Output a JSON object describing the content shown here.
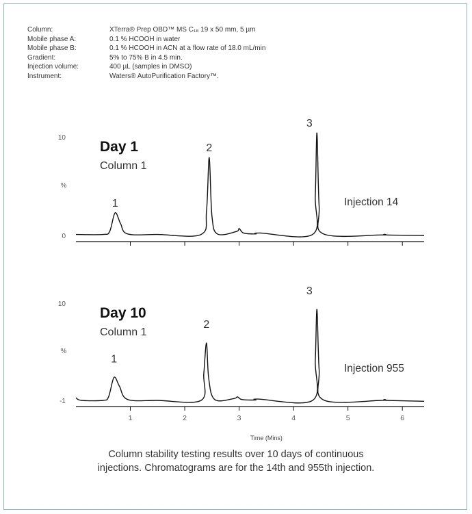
{
  "conditions": [
    {
      "label": "Column:",
      "value": "XTerra® Prep OBD™ MS C₁₈ 19 x 50 mm, 5 µm"
    },
    {
      "label": "Mobile phase A:",
      "value": "0.1 % HCOOH in water"
    },
    {
      "label": "Mobile phase B:",
      "value": "0.1 % HCOOH in ACN at a flow rate of 18.0 mL/min"
    },
    {
      "label": "Gradient:",
      "value": "5% to 75% B in 4.5 min."
    },
    {
      "label": "Injection volume:",
      "value": "400 µL (samples in DMSO)"
    },
    {
      "label": "Instrument:",
      "value": "Waters® AutoPurification Factory™."
    }
  ],
  "caption_lines": [
    "Column stability testing results over 10 days of continuous",
    "injections. Chromatograms are for the 14th and 955th injection."
  ],
  "colors": {
    "frame": "#8fb3c4",
    "trace": "#111111",
    "text": "#333333"
  },
  "chart_data": [
    {
      "type": "line",
      "title": "Day 1",
      "subtitle": "Column 1",
      "annotation": "Injection 14",
      "ylabel": "%",
      "xlabel": "",
      "ylim": [
        0,
        10
      ],
      "yticks": [
        "0",
        "10"
      ],
      "xlim": [
        0,
        6.4
      ],
      "xticks": [
        1,
        2,
        3,
        4,
        5,
        6
      ],
      "xtick_labels": false,
      "peaks": [
        {
          "label": "1",
          "time": 0.72,
          "height": 2.3
        },
        {
          "label": "2",
          "time": 2.45,
          "height": 7.9
        },
        {
          "label": "3",
          "time": 4.43,
          "height": 10.4
        }
      ],
      "series": [
        {
          "x": [
            0,
            0.5,
            0.62,
            0.72,
            0.82,
            0.95,
            1.5,
            2.3,
            2.4,
            2.45,
            2.5,
            2.6,
            2.95,
            3.0,
            3.08,
            3.3,
            3.38,
            4.35,
            4.4,
            4.43,
            4.47,
            4.55,
            5.6,
            5.67,
            5.72,
            6.4
          ],
          "y": [
            0.1,
            0.1,
            0.4,
            2.3,
            1.2,
            0.15,
            0.1,
            0.1,
            2.5,
            7.9,
            2.0,
            0.15,
            0.4,
            0.7,
            0.25,
            0.15,
            0.25,
            0.1,
            4.0,
            10.4,
            3.0,
            0.15,
            0.05,
            0.12,
            0.05,
            0.0
          ]
        }
      ]
    },
    {
      "type": "line",
      "title": "Day 10",
      "subtitle": "Column 1",
      "annotation": "Injection 955",
      "ylabel": "%",
      "xlabel": "Time (Mins)",
      "ylim": [
        -1,
        10
      ],
      "yticks": [
        "-1",
        "10"
      ],
      "xlim": [
        0,
        6.4
      ],
      "xticks": [
        1,
        2,
        3,
        4,
        5,
        6
      ],
      "xtick_labels": true,
      "peaks": [
        {
          "label": "1",
          "time": 0.7,
          "height": 2.6
        },
        {
          "label": "2",
          "time": 2.4,
          "height": 6.5
        },
        {
          "label": "3",
          "time": 4.43,
          "height": 10.3
        }
      ],
      "series": [
        {
          "x": [
            0,
            0.1,
            0.5,
            0.6,
            0.7,
            0.8,
            0.95,
            1.5,
            2.3,
            2.35,
            2.4,
            2.44,
            2.55,
            2.9,
            2.97,
            3.05,
            3.3,
            3.35,
            4.35,
            4.4,
            4.43,
            4.47,
            4.55,
            5.6,
            5.67,
            5.72,
            6.4
          ],
          "y": [
            -0.7,
            -1.0,
            -1.0,
            -0.6,
            1.6,
            0.6,
            -0.9,
            -1.0,
            -1.0,
            2.0,
            5.5,
            1.5,
            -0.9,
            -0.8,
            -0.6,
            -0.9,
            -0.95,
            -0.85,
            -1.0,
            3.5,
            9.3,
            2.5,
            -0.95,
            -1.0,
            -0.9,
            -1.0,
            -1.1
          ]
        }
      ]
    }
  ]
}
